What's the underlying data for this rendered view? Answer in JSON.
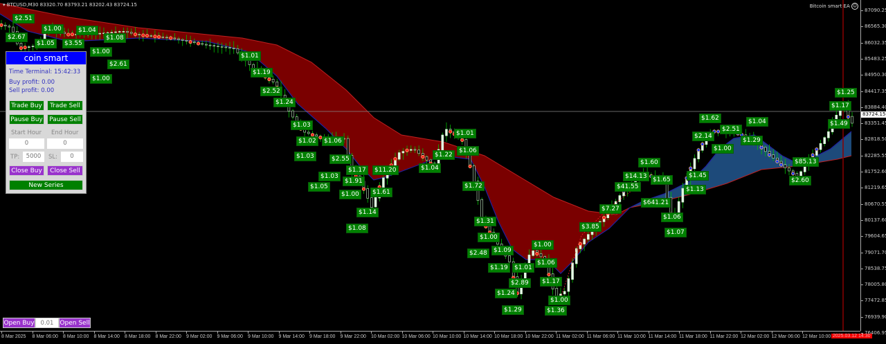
{
  "header": {
    "symbol": "BTCUSD,M30",
    "ohlc": "83320.70 83793.21 83202.43 83724.15"
  },
  "ea_label": "Bitcoin smart EA",
  "ea_icon": "smiley-icon",
  "colors": {
    "bearish_cloud": "#7a0000",
    "bullish_cloud": "#1d4a7a",
    "profit_label_bg": "#008000",
    "panel_title_bg": "#0000ff",
    "close_button_bg": "#9933cc"
  },
  "price_axis": {
    "ticks": [
      "87090.25",
      "86565.30",
      "86032.35",
      "85483.25",
      "84950.30",
      "84417.35",
      "83884.40",
      "83351.45",
      "82818.50",
      "82285.55",
      "81752.60",
      "81219.65",
      "80670.55",
      "80137.60",
      "79604.65",
      "79071.70",
      "78538.75",
      "78005.80",
      "77472.85",
      "76939.90",
      "76406.95"
    ],
    "current_price": "83724.15"
  },
  "time_axis": {
    "ticks": [
      "8 Mar 2025",
      "8 Mar 06:00",
      "8 Mar 10:00",
      "8 Mar 14:00",
      "8 Mar 18:00",
      "8 Mar 22:00",
      "9 Mar 02:00",
      "9 Mar 06:00",
      "9 Mar 10:00",
      "9 Mar 14:00",
      "9 Mar 18:00",
      "9 Mar 22:00",
      "10 Mar 02:00",
      "10 Mar 06:00",
      "10 Mar 10:00",
      "10 Mar 14:00",
      "10 Mar 18:00",
      "10 Mar 22:00",
      "11 Mar 02:00",
      "11 Mar 06:00",
      "11 Mar 10:00",
      "11 Mar 14:00",
      "11 Mar 18:00",
      "11 Mar 22:00",
      "12 Mar 02:00",
      "12 Mar 06:00",
      "12 Mar 10:00"
    ],
    "cursor_time": "2025.03.12 14:30"
  },
  "profit_labels": [
    "$2.67",
    "$2.51",
    "$1.05",
    "$1.00",
    "$3.55",
    "$1.00",
    "$1.04",
    "$1.08",
    "$2.61",
    "$1.00",
    "$1.01",
    "$1.19",
    "$2.52",
    "$1.24",
    "$1.03",
    "$1.02",
    "$1.03",
    "$1.06",
    "$2.55",
    "$1.03",
    "$1.05",
    "$1.17",
    "$1.00",
    "$11.20",
    "$1.91",
    "$1.61",
    "$1.14",
    "$1.08",
    "$1.04",
    "$1.22",
    "$1.01",
    "$1.06",
    "$1.72",
    "$1.31",
    "$1.00",
    "$2.48",
    "$1.09",
    "$1.19",
    "$1.01",
    "$2.89",
    "$1.24",
    "$1.29",
    "$1.00",
    "$1.06",
    "$1.17",
    "$1.00",
    "$1.36",
    "$3.85",
    "$7.27",
    "$41.55",
    "$14.13",
    "$1.60",
    "$1.65",
    "$641.21",
    "$1.13",
    "$1.45",
    "$1.06",
    "$1.07",
    "$2.14",
    "$1.62",
    "$2.51",
    "$1.00",
    "$1.04",
    "$1.29",
    "$85.13",
    "$2.60",
    "$1.49",
    "$1.25",
    "$1.17"
  ],
  "panel": {
    "title": "coin smart",
    "time_terminal": "Time Terminal: 15:42:33",
    "buy_profit": "Buy profit: 0.00",
    "sell_profit": "Sell profit: 0.00",
    "trade_buy": "Trade Buy",
    "trade_sell": "Trade Sell",
    "pause_buy": "Pause Buy",
    "pause_sell": "Pause Sell",
    "start_hour_label": "Start Hour",
    "end_hour_label": "End Hour",
    "start_hour": "0",
    "end_hour": "0",
    "tp_label": "TP:",
    "tp": "5000",
    "sl_label": "SL:",
    "sl": "0",
    "close_buy": "Close Buy",
    "close_sell": "Close Sell",
    "new_series": "New Series"
  },
  "order_bar": {
    "open_buy": "Open Buy",
    "lot": "0.01",
    "open_sell": "Open Sell"
  }
}
